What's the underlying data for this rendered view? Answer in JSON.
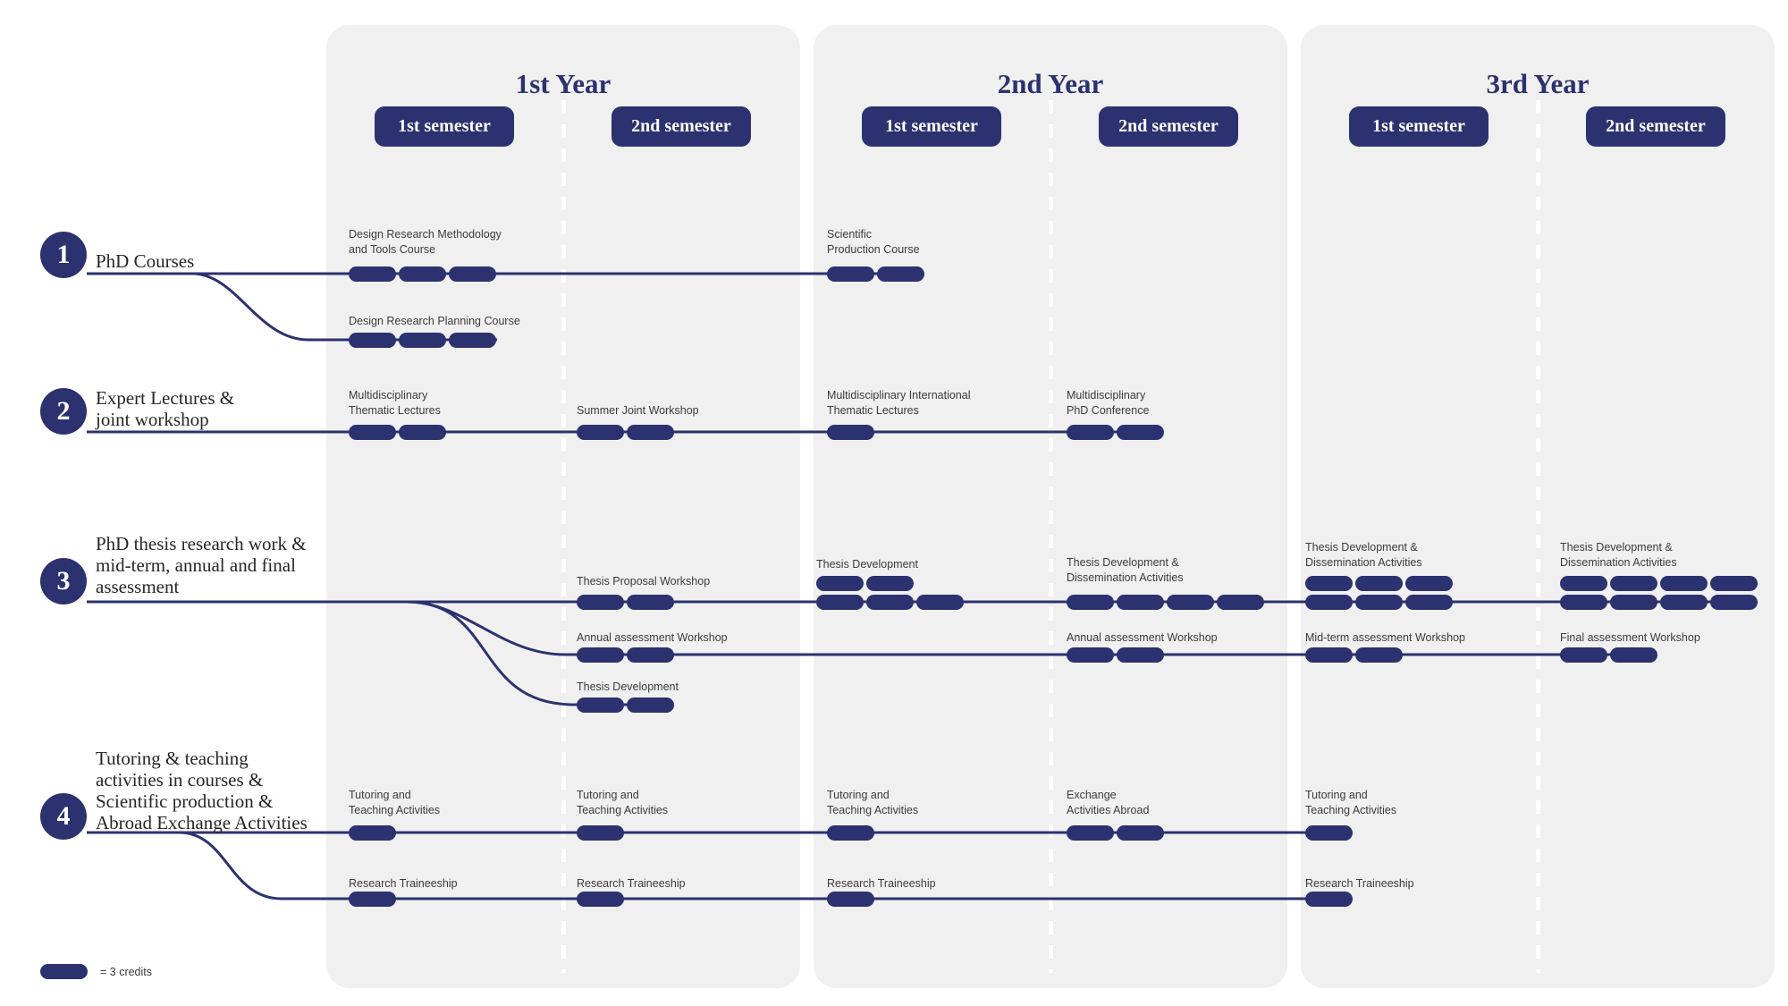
{
  "colors": {
    "navy": "#2c326f",
    "panel_gray": "#f1f0f0",
    "label_text": "#3b3b3b"
  },
  "credits_per_pill": 3,
  "legend": {
    "pill_label": "= 3 credits"
  },
  "years": [
    {
      "title": "1st Year",
      "semesters": [
        "1st semester",
        "2nd semester"
      ]
    },
    {
      "title": "2nd Year",
      "semesters": [
        "1st semester",
        "2nd semester"
      ]
    },
    {
      "title": "3rd Year",
      "semesters": [
        "1st semester",
        "2nd semester"
      ]
    }
  ],
  "rows": [
    {
      "number": "1",
      "label_lines": [
        "PhD Courses"
      ]
    },
    {
      "number": "2",
      "label_lines": [
        "Expert Lectures &",
        "joint workshop"
      ]
    },
    {
      "number": "3",
      "label_lines": [
        "PhD thesis research work &",
        "mid-term, annual and final",
        "assessment"
      ]
    },
    {
      "number": "4",
      "label_lines": [
        "Tutoring & teaching",
        "activities in courses &",
        "Scientific production &",
        "Abroad Exchange Activities"
      ]
    }
  ],
  "activities": [
    {
      "id": "drm",
      "row": 1,
      "year": 1,
      "semester": 1,
      "label_lines": [
        "Design Research Methodology",
        "and Tools Course"
      ],
      "credits": 9
    },
    {
      "id": "spc",
      "row": 1,
      "year": 2,
      "semester": 1,
      "label_lines": [
        "Scientific",
        "Production Course"
      ],
      "credits": 6
    },
    {
      "id": "drp",
      "row": 1,
      "year": 1,
      "semester": 1,
      "label_lines": [
        "Design Research Planning Course"
      ],
      "credits": 9
    },
    {
      "id": "mtl",
      "row": 2,
      "year": 1,
      "semester": 1,
      "label_lines": [
        "Multidisciplinary",
        "Thematic Lectures"
      ],
      "credits": 6
    },
    {
      "id": "sjw",
      "row": 2,
      "year": 1,
      "semester": 2,
      "label_lines": [
        "Summer Joint Workshop"
      ],
      "credits": 6
    },
    {
      "id": "mitl",
      "row": 2,
      "year": 2,
      "semester": 1,
      "label_lines": [
        "Multidisciplinary International",
        "Thematic Lectures"
      ],
      "credits": 3
    },
    {
      "id": "mpc",
      "row": 2,
      "year": 2,
      "semester": 2,
      "label_lines": [
        "Multidisciplinary",
        "PhD Conference"
      ],
      "credits": 6
    },
    {
      "id": "tpw",
      "row": 3,
      "year": 1,
      "semester": 2,
      "label_lines": [
        "Thesis Proposal Workshop"
      ],
      "credits": 6
    },
    {
      "id": "td21",
      "row": 3,
      "year": 2,
      "semester": 1,
      "label_lines": [
        "Thesis Development"
      ],
      "credits": 15
    },
    {
      "id": "tdda22",
      "row": 3,
      "year": 2,
      "semester": 2,
      "label_lines": [
        "Thesis Development &",
        "Dissemination Activities"
      ],
      "credits": 12
    },
    {
      "id": "tdda31",
      "row": 3,
      "year": 3,
      "semester": 1,
      "label_lines": [
        "Thesis Development &",
        "Dissemination Activities"
      ],
      "credits": 18
    },
    {
      "id": "tdda32",
      "row": 3,
      "year": 3,
      "semester": 2,
      "label_lines": [
        "Thesis Development &",
        "Dissemination Activities"
      ],
      "credits": 24
    },
    {
      "id": "aaw12",
      "row": 3,
      "year": 1,
      "semester": 2,
      "label_lines": [
        "Annual assessment Workshop"
      ],
      "credits": 6
    },
    {
      "id": "aaw22",
      "row": 3,
      "year": 2,
      "semester": 2,
      "label_lines": [
        "Annual assessment Workshop"
      ],
      "credits": 6
    },
    {
      "id": "mtaw",
      "row": 3,
      "year": 3,
      "semester": 1,
      "label_lines": [
        "Mid-term assessment Workshop"
      ],
      "credits": 6
    },
    {
      "id": "faw",
      "row": 3,
      "year": 3,
      "semester": 2,
      "label_lines": [
        "Final assessment Workshop"
      ],
      "credits": 6
    },
    {
      "id": "td12",
      "row": 3,
      "year": 1,
      "semester": 2,
      "label_lines": [
        "Thesis Development"
      ],
      "credits": 6
    },
    {
      "id": "tta11",
      "row": 4,
      "year": 1,
      "semester": 1,
      "label_lines": [
        "Tutoring and",
        "Teaching Activities"
      ],
      "credits": 3
    },
    {
      "id": "tta12",
      "row": 4,
      "year": 1,
      "semester": 2,
      "label_lines": [
        "Tutoring and",
        "Teaching Activities"
      ],
      "credits": 3
    },
    {
      "id": "tta21",
      "row": 4,
      "year": 2,
      "semester": 1,
      "label_lines": [
        "Tutoring and",
        "Teaching Activities"
      ],
      "credits": 3
    },
    {
      "id": "eaa",
      "row": 4,
      "year": 2,
      "semester": 2,
      "label_lines": [
        "Exchange",
        "Activities Abroad"
      ],
      "credits": 6
    },
    {
      "id": "tta31",
      "row": 4,
      "year": 3,
      "semester": 1,
      "label_lines": [
        "Tutoring and",
        "Teaching Activities"
      ],
      "credits": 3
    },
    {
      "id": "rt11",
      "row": 4,
      "year": 1,
      "semester": 1,
      "label_lines": [
        "Research Traineeship"
      ],
      "credits": 3
    },
    {
      "id": "rt12",
      "row": 4,
      "year": 1,
      "semester": 2,
      "label_lines": [
        "Research Traineeship"
      ],
      "credits": 3
    },
    {
      "id": "rt21",
      "row": 4,
      "year": 2,
      "semester": 1,
      "label_lines": [
        "Research Traineeship"
      ],
      "credits": 3
    },
    {
      "id": "rt31",
      "row": 4,
      "year": 3,
      "semester": 1,
      "label_lines": [
        "Research Traineeship"
      ],
      "credits": 3
    }
  ]
}
